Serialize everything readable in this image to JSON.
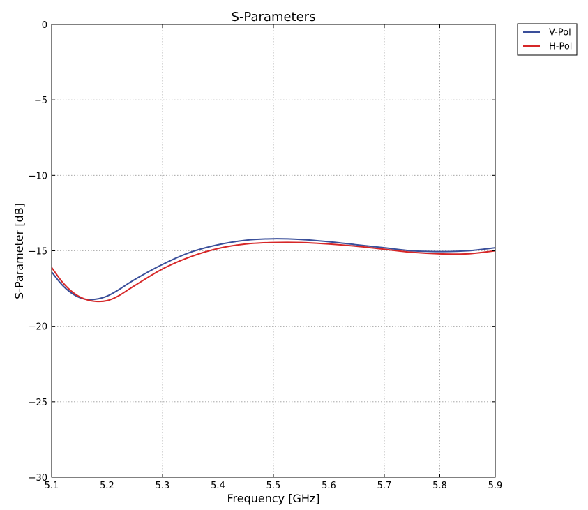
{
  "chart_data": {
    "type": "line",
    "title": "S-Parameters",
    "xlabel": "Frequency [GHz]",
    "ylabel": "S-Parameter [dB]",
    "xlim": [
      5.1,
      5.9
    ],
    "ylim": [
      -30,
      0
    ],
    "xticks": [
      "5.1",
      "5.2",
      "5.3",
      "5.4",
      "5.5",
      "5.6",
      "5.7",
      "5.8",
      "5.9"
    ],
    "yticks": [
      "0",
      "−5",
      "−10",
      "−15",
      "−20",
      "−25",
      "−30"
    ],
    "grid": true,
    "legend_position": "outside-top-right",
    "x": [
      5.1,
      5.12,
      5.14,
      5.16,
      5.18,
      5.2,
      5.22,
      5.25,
      5.3,
      5.35,
      5.4,
      5.45,
      5.5,
      5.55,
      5.6,
      5.65,
      5.7,
      5.75,
      5.8,
      5.85,
      5.9
    ],
    "series": [
      {
        "name": "V-Pol",
        "color": "#3a4f9a",
        "values": [
          -16.4,
          -17.3,
          -17.9,
          -18.2,
          -18.2,
          -18.0,
          -17.6,
          -16.9,
          -15.9,
          -15.1,
          -14.6,
          -14.3,
          -14.2,
          -14.25,
          -14.4,
          -14.6,
          -14.8,
          -15.0,
          -15.05,
          -15.0,
          -14.8
        ]
      },
      {
        "name": "H-Pol",
        "color": "#d62728",
        "values": [
          -16.1,
          -17.1,
          -17.8,
          -18.2,
          -18.35,
          -18.3,
          -18.0,
          -17.3,
          -16.2,
          -15.4,
          -14.85,
          -14.55,
          -14.45,
          -14.45,
          -14.55,
          -14.7,
          -14.9,
          -15.1,
          -15.2,
          -15.2,
          -15.0
        ]
      }
    ]
  }
}
